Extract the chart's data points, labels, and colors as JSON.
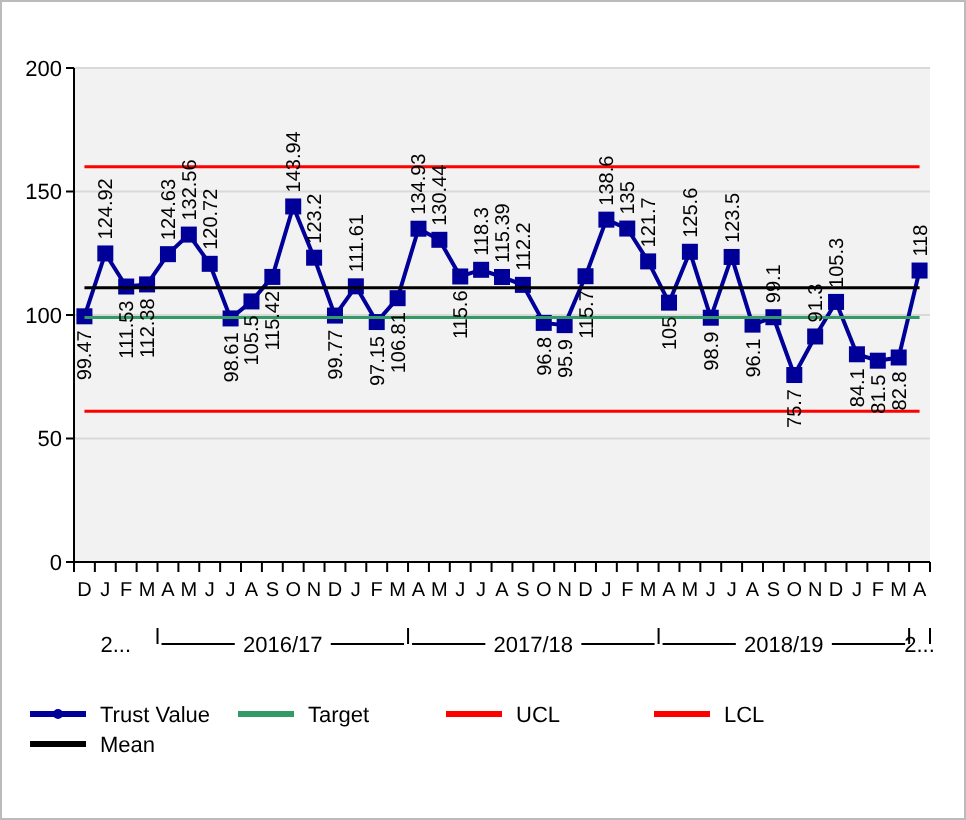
{
  "chart_data": {
    "type": "line",
    "categories": [
      "D",
      "J",
      "F",
      "M",
      "A",
      "M",
      "J",
      "J",
      "A",
      "S",
      "O",
      "N",
      "D",
      "J",
      "F",
      "M",
      "A",
      "M",
      "J",
      "J",
      "A",
      "S",
      "O",
      "N",
      "D",
      "J",
      "F",
      "M",
      "A",
      "M",
      "J",
      "J",
      "A",
      "S",
      "O",
      "N",
      "D",
      "J",
      "F",
      "M",
      "A"
    ],
    "series": [
      {
        "name": "Trust Value",
        "color": "#000099",
        "marker": "square",
        "values": [
          99.47,
          124.92,
          111.53,
          112.38,
          124.63,
          132.56,
          120.72,
          98.61,
          105.5,
          115.42,
          143.94,
          123.2,
          99.77,
          111.61,
          97.15,
          106.81,
          134.93,
          130.44,
          115.6,
          118.3,
          115.39,
          112.2,
          96.8,
          95.9,
          115.7,
          138.6,
          135,
          121.7,
          105,
          125.6,
          98.9,
          123.5,
          96.1,
          99.1,
          75.7,
          91.3,
          105.3,
          84.1,
          81.5,
          82.8,
          118
        ],
        "value_labels": [
          "99.47",
          "124.92",
          "111.53",
          "112.38",
          "124.63",
          "132.56",
          "120.72",
          "98.61",
          "105.5",
          "115.42",
          "143.94",
          "123.2",
          "99.77",
          "111.61",
          "97.15",
          "106.81",
          "134.93",
          "130.44",
          "115.6",
          "118.3",
          "115.39",
          "112.2",
          "96.8",
          "95.9",
          "115.7",
          "138.6",
          "135",
          "121.7",
          "105",
          "125.6",
          "98.9",
          "123.5",
          "96.1",
          "99.1",
          "75.7",
          "91.3",
          "105.3",
          "84.1",
          "81.5",
          "82.8",
          "118"
        ]
      },
      {
        "name": "Target",
        "color": "#339966",
        "marker": "none",
        "values": [
          99,
          99,
          99,
          99,
          99,
          99,
          99,
          99,
          99,
          99,
          99,
          99,
          99,
          99,
          99,
          99,
          99,
          99,
          99,
          99,
          99,
          99,
          99,
          99,
          99,
          99,
          99,
          99,
          99,
          99,
          99,
          99,
          99,
          99,
          99,
          99,
          99,
          99,
          99,
          99,
          99
        ]
      },
      {
        "name": "UCL",
        "color": "#ff0000",
        "marker": "none",
        "values": [
          160,
          160,
          160,
          160,
          160,
          160,
          160,
          160,
          160,
          160,
          160,
          160,
          160,
          160,
          160,
          160,
          160,
          160,
          160,
          160,
          160,
          160,
          160,
          160,
          160,
          160,
          160,
          160,
          160,
          160,
          160,
          160,
          160,
          160,
          160,
          160,
          160,
          160,
          160,
          160,
          160
        ]
      },
      {
        "name": "LCL",
        "color": "#ff0000",
        "marker": "none",
        "values": [
          61,
          61,
          61,
          61,
          61,
          61,
          61,
          61,
          61,
          61,
          61,
          61,
          61,
          61,
          61,
          61,
          61,
          61,
          61,
          61,
          61,
          61,
          61,
          61,
          61,
          61,
          61,
          61,
          61,
          61,
          61,
          61,
          61,
          61,
          61,
          61,
          61,
          61,
          61,
          61,
          61
        ]
      },
      {
        "name": "Mean",
        "color": "#000000",
        "marker": "none",
        "values": [
          111,
          111,
          111,
          111,
          111,
          111,
          111,
          111,
          111,
          111,
          111,
          111,
          111,
          111,
          111,
          111,
          111,
          111,
          111,
          111,
          111,
          111,
          111,
          111,
          111,
          111,
          111,
          111,
          111,
          111,
          111,
          111,
          111,
          111,
          111,
          111,
          111,
          111,
          111,
          111,
          111
        ]
      }
    ],
    "annotations": [
      "2...",
      "2016/17",
      "2017/18",
      "2018/19",
      "2..."
    ],
    "ylim": [
      0,
      200
    ],
    "yticks": [
      0,
      50,
      100,
      150,
      200
    ],
    "grid": "y",
    "legend": "bottom"
  }
}
